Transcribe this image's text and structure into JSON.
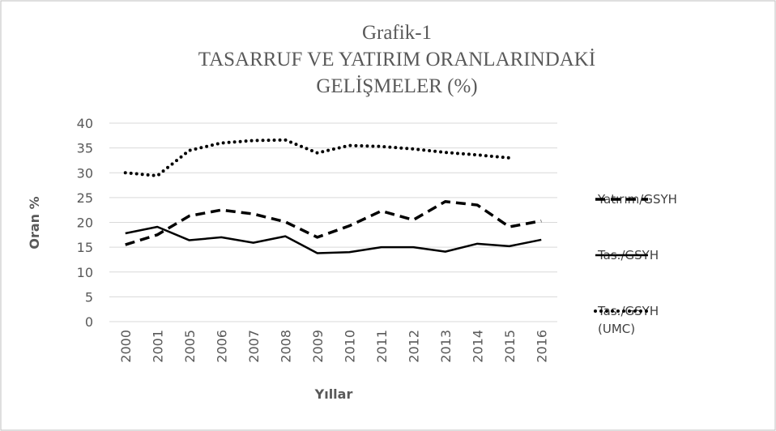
{
  "chart_data": {
    "type": "line",
    "title": [
      "Grafik-1",
      "TASARRUF VE YATIRIM ORANLARINDAKİ",
      "GELİŞMELER (%)"
    ],
    "xlabel": "Yıllar",
    "ylabel": "Oran %",
    "categories": [
      "2000",
      "2001",
      "2005",
      "2006",
      "2007",
      "2008",
      "2009",
      "2010",
      "2011",
      "2012",
      "2013",
      "2014",
      "2015",
      "2016"
    ],
    "series": [
      {
        "name": "Yatırım/GSYH",
        "color": "#000000",
        "dash": "dashed",
        "values": [
          15.5,
          17.5,
          21.3,
          22.5,
          21.7,
          20.1,
          17.0,
          19.3,
          22.3,
          20.5,
          24.2,
          23.5,
          19.1,
          20.3
        ]
      },
      {
        "name": "Tas./GSYH",
        "color": "#000000",
        "dash": "solid",
        "values": [
          17.8,
          19.1,
          16.4,
          17.0,
          15.9,
          17.2,
          13.8,
          14.0,
          15.0,
          15.0,
          14.1,
          15.7,
          15.2,
          16.5
        ]
      },
      {
        "name": "Tas./GSYH (UMC)",
        "color": "#000000",
        "dash": "dotted",
        "values": [
          30.0,
          29.4,
          34.5,
          36.0,
          36.5,
          36.6,
          34.0,
          35.5,
          35.3,
          34.8,
          34.1,
          33.6,
          33.0,
          null
        ]
      }
    ],
    "ylim": [
      0,
      40
    ],
    "yticks": [
      0,
      5,
      10,
      15,
      20,
      25,
      30,
      35,
      40
    ],
    "grid": true,
    "legend": "right"
  }
}
